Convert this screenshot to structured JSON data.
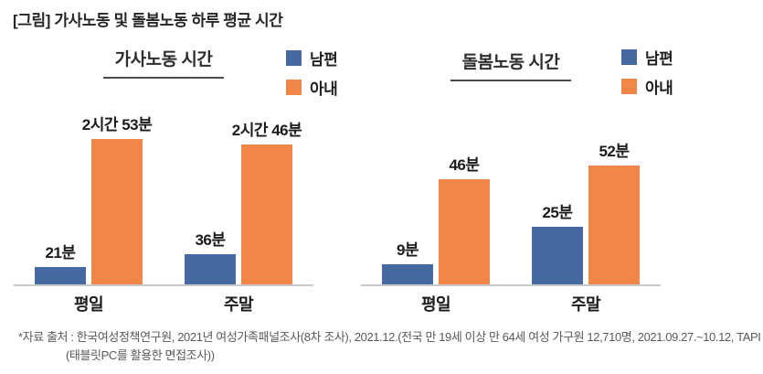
{
  "page": {
    "title": "[그림] 가사노동 및 돌봄노동 하루 평균 시간",
    "source_line1": "*자료 출처 : 한국여성정책연구원, 2021년 여성가족패널조사(8차 조사), 2021.12.(전국 만 19세 이상 만 64세 여성 가구원 12,710명, 2021.09.27.~10.12, TAPI",
    "source_line2": "(태블릿PC를 활용한 면접조사))"
  },
  "legend": {
    "husband": "남편",
    "wife": "아내"
  },
  "colors": {
    "husband": "#4569A0",
    "wife": "#F08648",
    "axis": "#C9C9C9",
    "title_text": "#262626",
    "note_text": "#58595B"
  },
  "chart_data": [
    {
      "type": "bar",
      "title": "가사노동 시간",
      "categories": [
        "평일",
        "주말"
      ],
      "unit": "minutes",
      "ylim": [
        0,
        190
      ],
      "grid": false,
      "legend_position": "top-right",
      "series": [
        {
          "name": "남편",
          "color_key": "husband",
          "values": [
            21,
            36
          ],
          "labels": [
            "21분",
            "36분"
          ]
        },
        {
          "name": "아내",
          "color_key": "wife",
          "values": [
            173,
            166
          ],
          "labels": [
            "2시간 53분",
            "2시간 46분"
          ]
        }
      ]
    },
    {
      "type": "bar",
      "title": "돌봄노동 시간",
      "categories": [
        "평일",
        "주말"
      ],
      "unit": "minutes",
      "ylim": [
        0,
        70
      ],
      "grid": false,
      "legend_position": "top-right",
      "series": [
        {
          "name": "남편",
          "color_key": "husband",
          "values": [
            9,
            25
          ],
          "labels": [
            "9분",
            "25분"
          ]
        },
        {
          "name": "아내",
          "color_key": "wife",
          "values": [
            46,
            52
          ],
          "labels": [
            "46분",
            "52분"
          ]
        }
      ]
    }
  ]
}
